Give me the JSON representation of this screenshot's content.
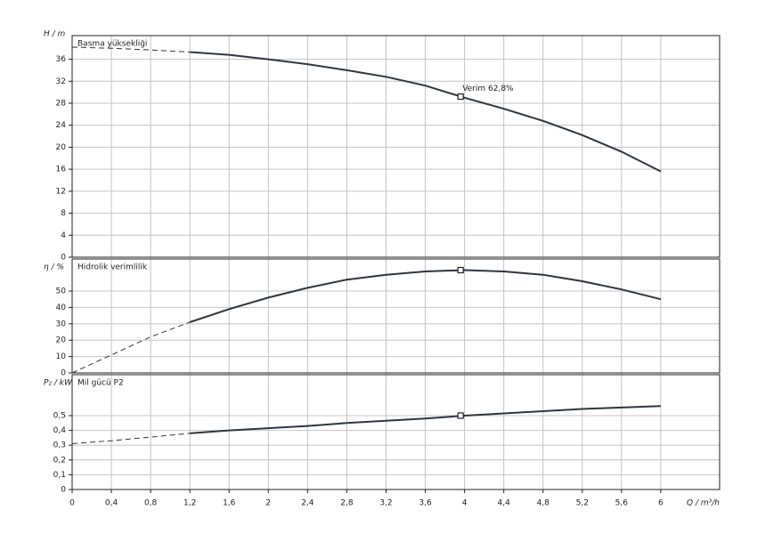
{
  "chart_data": [
    {
      "type": "line",
      "ylabel": "H / m",
      "title": "Basma yüksekliği",
      "color": "#2f3542",
      "xlim": [
        0,
        6.6
      ],
      "ylim": [
        0,
        40.3
      ],
      "yticks": [
        0,
        4,
        8,
        12,
        16,
        20,
        24,
        28,
        32,
        36
      ],
      "grid": true,
      "x": [
        0,
        0.4,
        0.8,
        1.2,
        1.6,
        2,
        2.4,
        2.8,
        3.2,
        3.6,
        4,
        4.4,
        4.8,
        5.2,
        5.6,
        6
      ],
      "series": [
        {
          "line_style": "dashed",
          "values": [
            38.2,
            38.0,
            37.7,
            37.3,
            null,
            null,
            null,
            null,
            null,
            null,
            null,
            null,
            null,
            null,
            null,
            null
          ]
        },
        {
          "line_style": "solid",
          "values": [
            null,
            null,
            null,
            37.3,
            36.8,
            36.0,
            35.1,
            34.0,
            32.8,
            31.2,
            29.0,
            27.0,
            24.8,
            22.2,
            19.2,
            15.6
          ]
        }
      ],
      "marker": {
        "x": 3.96,
        "y": 29.2
      },
      "annotation": "Verim  62,8%"
    },
    {
      "type": "line",
      "ylabel": "η / %",
      "title": "Hidrolik verimlilik",
      "color": "#2f3542",
      "xlim": [
        0,
        6.6
      ],
      "ylim": [
        0,
        69.6
      ],
      "yticks": [
        0,
        10,
        20,
        30,
        40,
        50
      ],
      "grid": true,
      "x": [
        0,
        0.4,
        0.8,
        1.2,
        1.6,
        2,
        2.4,
        2.8,
        3.2,
        3.6,
        4,
        4.4,
        4.8,
        5.2,
        5.6,
        6
      ],
      "series": [
        {
          "line_style": "dashed",
          "values": [
            0,
            11,
            22,
            31,
            null,
            null,
            null,
            null,
            null,
            null,
            null,
            null,
            null,
            null,
            null,
            null
          ]
        },
        {
          "line_style": "solid",
          "values": [
            null,
            null,
            null,
            31,
            39,
            46,
            52,
            57,
            60,
            62,
            62.8,
            62,
            60,
            56,
            51,
            45
          ]
        }
      ],
      "marker": {
        "x": 3.96,
        "y": 62.8
      }
    },
    {
      "type": "line",
      "ylabel": "P₂ / kW",
      "title": "Mil gücü P2",
      "color": "#2f3542",
      "xlim": [
        0,
        6.6
      ],
      "ylim": [
        0,
        0.777
      ],
      "yticks": [
        0,
        {
          "value": 0.1,
          "label": "0,1"
        },
        {
          "value": 0.2,
          "label": "0,2"
        },
        {
          "value": 0.3,
          "label": "0,3"
        },
        {
          "value": 0.4,
          "label": "0,4"
        },
        {
          "value": 0.5,
          "label": "0,5"
        }
      ],
      "grid": true,
      "xlabel": "Q / m³/h",
      "xticks": [
        0,
        {
          "value": 0.4,
          "label": "0,4"
        },
        {
          "value": 0.8,
          "label": "0,8"
        },
        {
          "value": 1.2,
          "label": "1,2"
        },
        {
          "value": 1.6,
          "label": "1,6"
        },
        2,
        {
          "value": 2.4,
          "label": "2,4"
        },
        {
          "value": 2.8,
          "label": "2,8"
        },
        {
          "value": 3.2,
          "label": "3,2"
        },
        {
          "value": 3.6,
          "label": "3,6"
        },
        4,
        {
          "value": 4.4,
          "label": "4,4"
        },
        {
          "value": 4.8,
          "label": "4,8"
        },
        {
          "value": 5.2,
          "label": "5,2"
        },
        {
          "value": 5.6,
          "label": "5,6"
        },
        6
      ],
      "x": [
        0,
        0.4,
        0.8,
        1.2,
        1.6,
        2,
        2.4,
        2.8,
        3.2,
        3.6,
        4,
        4.4,
        4.8,
        5.2,
        5.6,
        6
      ],
      "series": [
        {
          "line_style": "dashed",
          "values": [
            0.31,
            0.33,
            0.355,
            0.38,
            null,
            null,
            null,
            null,
            null,
            null,
            null,
            null,
            null,
            null,
            null,
            null
          ]
        },
        {
          "line_style": "solid",
          "values": [
            null,
            null,
            null,
            0.38,
            0.4,
            0.415,
            0.43,
            0.45,
            0.465,
            0.48,
            0.5,
            0.515,
            0.53,
            0.545,
            0.555,
            0.565
          ]
        }
      ],
      "marker": {
        "x": 3.96,
        "y": 0.5
      }
    }
  ]
}
